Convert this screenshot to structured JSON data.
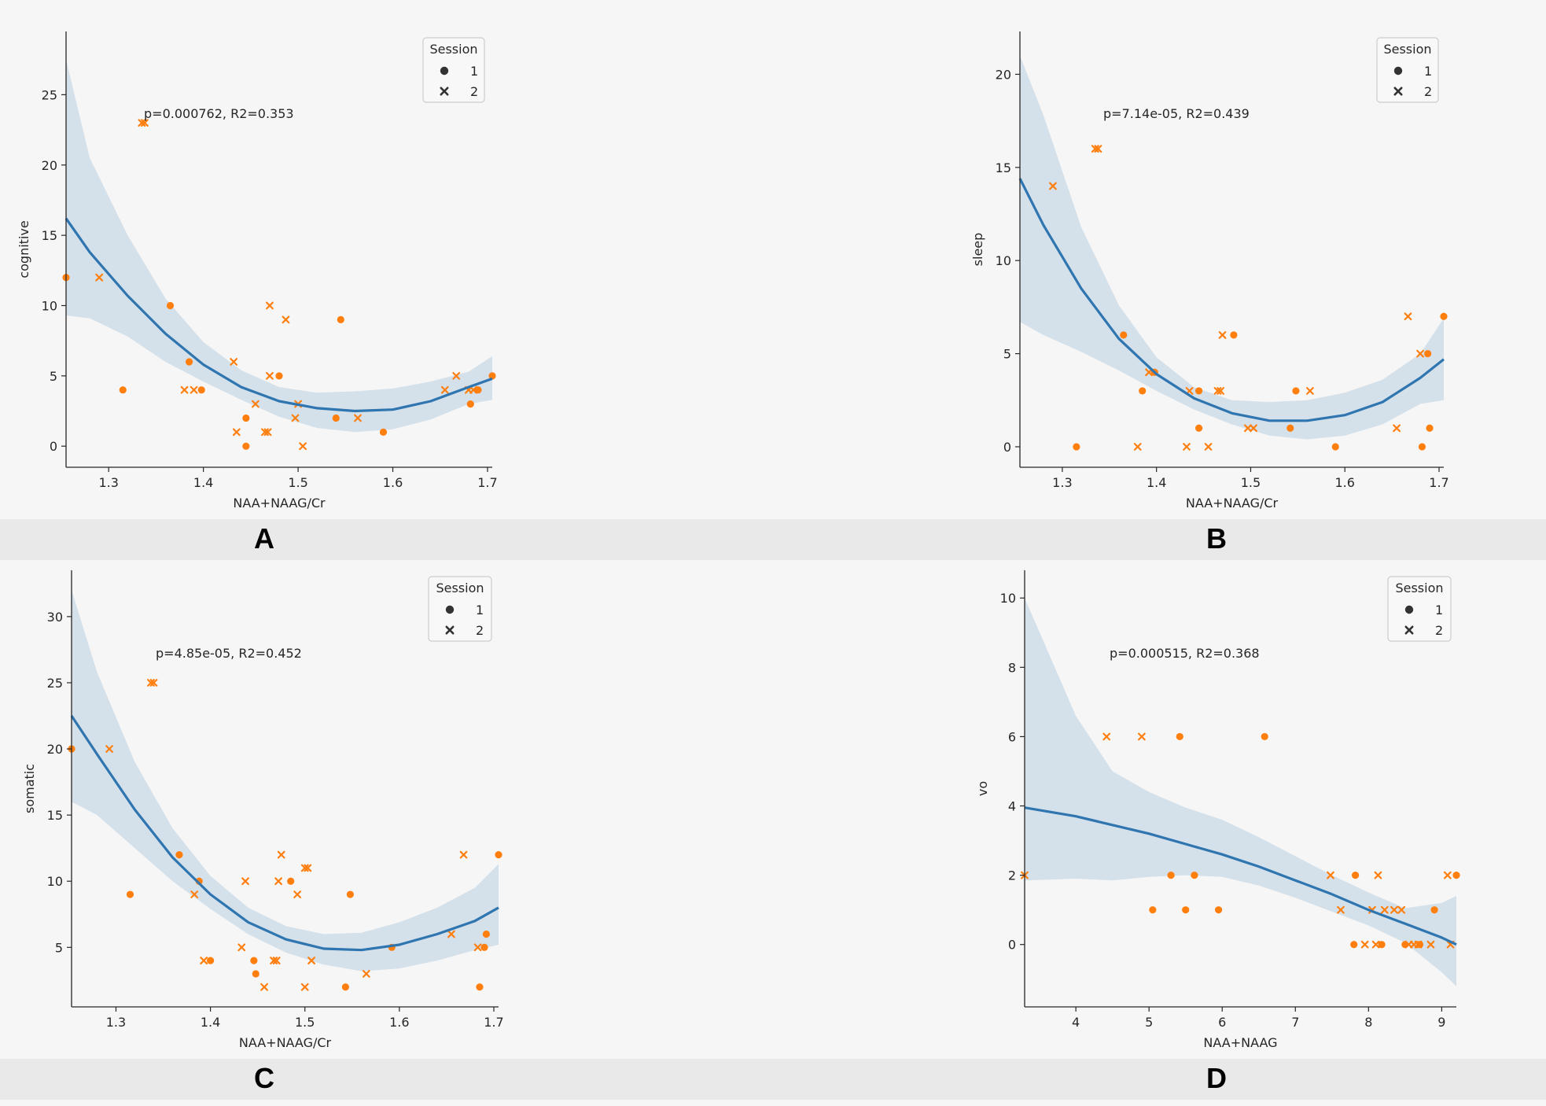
{
  "figure": {
    "panel_labels": [
      "A",
      "B",
      "C",
      "D"
    ]
  },
  "colors": {
    "points": "#ff7f0e",
    "fit_line": "#2f75b0",
    "ci_band": "#b8cde0",
    "axis": "#262626",
    "background": "#f6f6f6",
    "strip": "#e9e9e9"
  },
  "chart_data": [
    {
      "type": "scatter",
      "panel": "A",
      "title": "",
      "xlabel": "NAA+NAAG/Cr",
      "ylabel": "cognitive",
      "xlim": [
        1.255,
        1.705
      ],
      "ylim": [
        -1.5,
        29.5
      ],
      "xticks": [
        1.3,
        1.4,
        1.5,
        1.6,
        1.7
      ],
      "xtick_labels": [
        "1.3",
        "1.4",
        "1.5",
        "1.6",
        "1.7"
      ],
      "yticks": [
        0,
        5,
        10,
        15,
        20,
        25
      ],
      "ytick_labels": [
        "0",
        "5",
        "10",
        "15",
        "20",
        "25"
      ],
      "annotation": "p=0.000762, R2=0.353",
      "legend": {
        "title": "Session",
        "entries": [
          "1",
          "2"
        ],
        "location": "upper right"
      },
      "series": [
        {
          "name": "1",
          "marker": "circle",
          "x": [
            1.255,
            1.315,
            1.365,
            1.385,
            1.398,
            1.445,
            1.445,
            1.48,
            1.54,
            1.545,
            1.59,
            1.682,
            1.69,
            1.705
          ],
          "y": [
            12,
            4,
            10,
            6,
            4,
            2,
            0,
            5,
            2,
            9,
            1,
            3,
            4,
            5
          ]
        },
        {
          "name": "2",
          "marker": "x",
          "x": [
            1.29,
            1.335,
            1.338,
            1.38,
            1.39,
            1.432,
            1.435,
            1.455,
            1.465,
            1.468,
            1.47,
            1.47,
            1.487,
            1.497,
            1.5,
            1.505,
            1.563,
            1.655,
            1.667,
            1.68,
            1.685
          ],
          "y": [
            12,
            23,
            23,
            4,
            4,
            6,
            1,
            3,
            1,
            1,
            10,
            5,
            9,
            2,
            3,
            0,
            2,
            4,
            5,
            4,
            4
          ]
        }
      ],
      "fit": {
        "x": [
          1.255,
          1.28,
          1.32,
          1.36,
          1.4,
          1.44,
          1.48,
          1.52,
          1.56,
          1.6,
          1.64,
          1.68,
          1.705
        ],
        "y": [
          16.2,
          13.8,
          10.7,
          8.0,
          5.8,
          4.2,
          3.2,
          2.7,
          2.5,
          2.6,
          3.2,
          4.2,
          4.8
        ],
        "lower": [
          9.3,
          9.1,
          7.8,
          6.0,
          4.6,
          3.3,
          2.1,
          1.3,
          1.0,
          1.2,
          1.9,
          3.0,
          3.3
        ],
        "upper": [
          27.5,
          20.5,
          15.0,
          10.5,
          7.4,
          5.4,
          4.2,
          3.8,
          3.9,
          4.1,
          4.6,
          5.3,
          6.4
        ]
      }
    },
    {
      "type": "scatter",
      "panel": "B",
      "title": "",
      "xlabel": "NAA+NAAG/Cr",
      "ylabel": "sleep",
      "xlim": [
        1.255,
        1.705
      ],
      "ylim": [
        -1.1,
        22.3
      ],
      "xticks": [
        1.3,
        1.4,
        1.5,
        1.6,
        1.7
      ],
      "xtick_labels": [
        "1.3",
        "1.4",
        "1.5",
        "1.6",
        "1.7"
      ],
      "yticks": [
        0,
        5,
        10,
        15,
        20
      ],
      "ytick_labels": [
        "0",
        "5",
        "10",
        "15",
        "20"
      ],
      "annotation": "p=7.14e-05, R2=0.439",
      "legend": {
        "title": "Session",
        "entries": [
          "1",
          "2"
        ],
        "location": "upper right"
      },
      "series": [
        {
          "name": "1",
          "marker": "circle",
          "x": [
            1.315,
            1.365,
            1.385,
            1.398,
            1.445,
            1.445,
            1.482,
            1.542,
            1.548,
            1.59,
            1.682,
            1.688,
            1.69,
            1.705
          ],
          "y": [
            0,
            6,
            3,
            4,
            3,
            1,
            6,
            1,
            3,
            0,
            0,
            5,
            1,
            7
          ]
        },
        {
          "name": "2",
          "marker": "x",
          "x": [
            1.29,
            1.335,
            1.338,
            1.38,
            1.392,
            1.432,
            1.435,
            1.455,
            1.465,
            1.468,
            1.47,
            1.497,
            1.503,
            1.563,
            1.655,
            1.667,
            1.68
          ],
          "y": [
            14,
            16,
            16,
            0,
            4,
            0,
            3,
            0,
            3,
            3,
            6,
            1,
            1,
            3,
            1,
            7,
            5
          ]
        }
      ],
      "fit": {
        "x": [
          1.255,
          1.28,
          1.32,
          1.36,
          1.4,
          1.44,
          1.48,
          1.52,
          1.56,
          1.6,
          1.64,
          1.68,
          1.705
        ],
        "y": [
          14.4,
          11.9,
          8.5,
          5.8,
          3.9,
          2.6,
          1.8,
          1.4,
          1.4,
          1.7,
          2.4,
          3.7,
          4.7
        ],
        "lower": [
          6.7,
          6.0,
          5.1,
          4.1,
          3.0,
          2.0,
          1.2,
          0.6,
          0.4,
          0.6,
          1.2,
          2.3,
          2.5
        ],
        "upper": [
          21.0,
          17.8,
          11.8,
          7.6,
          4.8,
          3.2,
          2.5,
          2.4,
          2.5,
          2.9,
          3.6,
          5.0,
          6.9
        ]
      }
    },
    {
      "type": "scatter",
      "panel": "C",
      "title": "",
      "xlabel": "NAA+NAAG/Cr",
      "ylabel": "somatic",
      "xlim": [
        1.253,
        1.705
      ],
      "ylim": [
        0.5,
        33.5
      ],
      "xticks": [
        1.3,
        1.4,
        1.5,
        1.6,
        1.7
      ],
      "xtick_labels": [
        "1.3",
        "1.4",
        "1.5",
        "1.6",
        "1.7"
      ],
      "yticks": [
        5,
        10,
        15,
        20,
        25,
        30
      ],
      "ytick_labels": [
        "5",
        "10",
        "15",
        "20",
        "25",
        "30"
      ],
      "annotation": "p=4.85e-05, R2=0.452",
      "legend": {
        "title": "Session",
        "entries": [
          "1",
          "2"
        ],
        "location": "upper right"
      },
      "series": [
        {
          "name": "1",
          "marker": "circle",
          "x": [
            1.253,
            1.315,
            1.367,
            1.388,
            1.4,
            1.446,
            1.448,
            1.485,
            1.543,
            1.548,
            1.592,
            1.685,
            1.69,
            1.692,
            1.705
          ],
          "y": [
            20,
            9,
            12,
            10,
            4,
            4,
            3,
            10,
            2,
            9,
            5,
            2,
            5,
            6,
            12
          ]
        },
        {
          "name": "2",
          "marker": "x",
          "x": [
            1.293,
            1.337,
            1.34,
            1.383,
            1.393,
            1.433,
            1.437,
            1.457,
            1.467,
            1.47,
            1.472,
            1.475,
            1.492,
            1.5,
            1.5,
            1.503,
            1.507,
            1.565,
            1.655,
            1.668,
            1.683
          ],
          "y": [
            20,
            25,
            25,
            9,
            4,
            5,
            10,
            2,
            4,
            4,
            10,
            12,
            9,
            11,
            2,
            11,
            4,
            3,
            6,
            12,
            5
          ]
        }
      ],
      "fit": {
        "x": [
          1.253,
          1.28,
          1.32,
          1.36,
          1.4,
          1.44,
          1.48,
          1.52,
          1.56,
          1.6,
          1.64,
          1.68,
          1.705
        ],
        "y": [
          22.5,
          19.6,
          15.4,
          11.8,
          9.0,
          6.9,
          5.6,
          4.9,
          4.8,
          5.2,
          6.0,
          7.0,
          8.0
        ],
        "lower": [
          16.0,
          15.0,
          12.5,
          10.0,
          7.9,
          6.0,
          4.6,
          3.7,
          3.2,
          3.4,
          4.0,
          4.8,
          5.2
        ],
        "upper": [
          32.0,
          25.8,
          19.0,
          14.0,
          10.4,
          8.0,
          6.6,
          6.0,
          6.1,
          6.9,
          8.0,
          9.5,
          11.3
        ]
      }
    },
    {
      "type": "scatter",
      "panel": "D",
      "title": "",
      "xlabel": "NAA+NAAG",
      "ylabel": "vo",
      "xlim": [
        3.3,
        9.2
      ],
      "ylim": [
        -1.8,
        10.8
      ],
      "xticks": [
        4,
        5,
        6,
        7,
        8,
        9
      ],
      "xtick_labels": [
        "4",
        "5",
        "6",
        "7",
        "8",
        "9"
      ],
      "yticks": [
        0,
        2,
        4,
        6,
        8,
        10
      ],
      "ytick_labels": [
        "0",
        "2",
        "4",
        "6",
        "8",
        "10"
      ],
      "annotation": "p=0.000515, R2=0.368",
      "legend": {
        "title": "Session",
        "entries": [
          "1",
          "2"
        ],
        "location": "upper right"
      },
      "series": [
        {
          "name": "1",
          "marker": "circle",
          "x": [
            5.05,
            5.3,
            5.42,
            5.5,
            5.62,
            5.95,
            6.58,
            7.8,
            7.82,
            8.18,
            8.5,
            8.7,
            8.9,
            9.2
          ],
          "y": [
            1,
            2,
            6,
            1,
            2,
            1,
            6,
            0,
            2,
            0,
            0,
            0,
            1,
            2
          ]
        },
        {
          "name": "2",
          "marker": "x",
          "x": [
            3.3,
            4.42,
            4.9,
            7.48,
            7.62,
            7.95,
            8.05,
            8.1,
            8.13,
            8.22,
            8.35,
            8.45,
            8.55,
            8.62,
            8.68,
            8.85,
            9.08,
            9.12
          ],
          "y": [
            2,
            6,
            6,
            2,
            1,
            0,
            1,
            0,
            2,
            1,
            1,
            1,
            0,
            0,
            0,
            0,
            2,
            0
          ]
        }
      ],
      "fit": {
        "x": [
          3.3,
          4.0,
          4.5,
          5.0,
          5.5,
          6.0,
          6.5,
          7.0,
          7.5,
          8.0,
          8.5,
          9.0,
          9.2
        ],
        "y": [
          3.95,
          3.7,
          3.45,
          3.2,
          2.9,
          2.6,
          2.25,
          1.85,
          1.45,
          1.0,
          0.6,
          0.2,
          0.0
        ],
        "lower": [
          1.85,
          1.9,
          1.85,
          1.95,
          2.0,
          1.95,
          1.7,
          1.35,
          0.95,
          0.55,
          0.05,
          -0.8,
          -1.2
        ],
        "upper": [
          10.0,
          6.6,
          5.0,
          4.4,
          3.95,
          3.6,
          3.1,
          2.55,
          2.0,
          1.5,
          1.05,
          1.2,
          1.4
        ]
      }
    }
  ]
}
